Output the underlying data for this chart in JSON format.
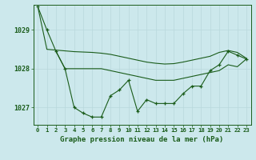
{
  "title": "Graphe pression niveau de la mer (hPa)",
  "background_color": "#cce8ec",
  "line_color": "#1a5c1a",
  "grid_color": "#b8d8dc",
  "xlim": [
    -0.5,
    23.5
  ],
  "ylim": [
    1026.55,
    1029.65
  ],
  "yticks": [
    1027,
    1028,
    1029
  ],
  "xtick_labels": [
    "0",
    "1",
    "2",
    "3",
    "4",
    "5",
    "6",
    "7",
    "8",
    "9",
    "10",
    "11",
    "12",
    "13",
    "14",
    "15",
    "16",
    "17",
    "18",
    "19",
    "20",
    "21",
    "22",
    "23"
  ],
  "series1_x": [
    0,
    1,
    2,
    3,
    4,
    5,
    6,
    7,
    8,
    9,
    10,
    11,
    12,
    13,
    14,
    15,
    16,
    17,
    18,
    19,
    20,
    21,
    22,
    23
  ],
  "series1_y": [
    1029.6,
    1029.0,
    1028.45,
    1028.0,
    1027.0,
    1026.85,
    1026.75,
    1026.75,
    1027.3,
    1027.45,
    1027.7,
    1026.9,
    1027.2,
    1027.1,
    1027.1,
    1027.1,
    1027.35,
    1027.55,
    1027.55,
    1027.95,
    1028.1,
    1028.45,
    1028.35,
    1028.25
  ],
  "series2_x": [
    0,
    1,
    2,
    3,
    4,
    5,
    6,
    7,
    8,
    9,
    10,
    11,
    12,
    13,
    14,
    15,
    16,
    17,
    18,
    19,
    20,
    21,
    22,
    23
  ],
  "series2_y": [
    1029.6,
    1028.5,
    1028.48,
    1028.46,
    1028.44,
    1028.43,
    1028.42,
    1028.4,
    1028.37,
    1028.32,
    1028.27,
    1028.22,
    1028.17,
    1028.14,
    1028.12,
    1028.13,
    1028.17,
    1028.22,
    1028.27,
    1028.32,
    1028.42,
    1028.47,
    1028.42,
    1028.27
  ],
  "series3_x": [
    2,
    3,
    4,
    5,
    6,
    7,
    8,
    9,
    10,
    11,
    12,
    13,
    14,
    15,
    16,
    17,
    18,
    19,
    20,
    21,
    22,
    23
  ],
  "series3_y": [
    1028.45,
    1028.0,
    1028.0,
    1028.0,
    1028.0,
    1028.0,
    1027.95,
    1027.9,
    1027.85,
    1027.8,
    1027.75,
    1027.7,
    1027.7,
    1027.7,
    1027.75,
    1027.8,
    1027.85,
    1027.9,
    1027.95,
    1028.1,
    1028.05,
    1028.25
  ]
}
